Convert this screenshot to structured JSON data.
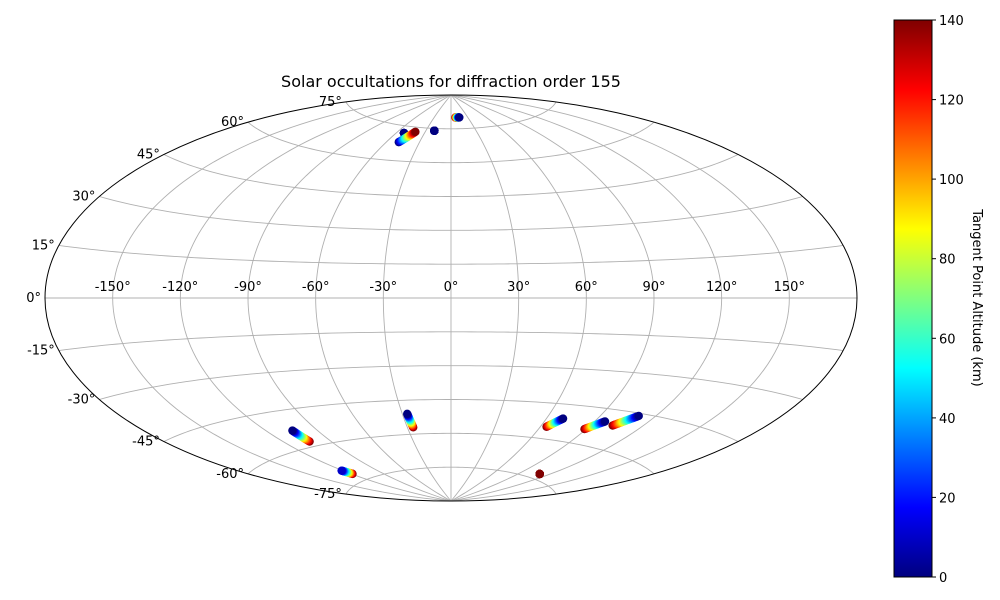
{
  "chart_data": {
    "type": "scatter",
    "projection": "aitoff",
    "title": "Solar occultations for diffraction order 155",
    "x_ticks": [
      -150,
      -120,
      -90,
      -60,
      -30,
      0,
      30,
      60,
      90,
      120,
      150
    ],
    "x_tick_labels": [
      "-150°",
      "-120°",
      "-90°",
      "-60°",
      "-30°",
      "0°",
      "30°",
      "60°",
      "90°",
      "120°",
      "150°"
    ],
    "y_ticks": [
      -75,
      -60,
      -45,
      -30,
      -15,
      0,
      15,
      30,
      45,
      60,
      75
    ],
    "y_tick_labels": [
      "-75°",
      "-60°",
      "-45°",
      "-30°",
      "-15°",
      "0°",
      "15°",
      "30°",
      "45°",
      "60°",
      "75°"
    ],
    "grid": true,
    "colormap": "jet",
    "colorbar": {
      "label": "Tangent Point Altitude (km)",
      "range": [
        0,
        140
      ],
      "ticks": [
        0,
        20,
        40,
        60,
        80,
        100,
        120,
        140
      ],
      "tick_labels": [
        "0",
        "20",
        "40",
        "60",
        "80",
        "100",
        "120",
        "140"
      ]
    },
    "occultations": [
      {
        "start": [
          -52,
          72
        ],
        "end": [
          -52,
          72
        ],
        "alt_start": 0,
        "alt_end": 0
      },
      {
        "start": [
          -49,
          68
        ],
        "end": [
          -41,
          73
        ],
        "alt_start": 0,
        "alt_end": 140
      },
      {
        "start": [
          -20,
          74
        ],
        "end": [
          -20,
          74
        ],
        "alt_start": 0,
        "alt_end": 0
      },
      {
        "start": [
          8,
          80
        ],
        "end": [
          15,
          80
        ],
        "alt_start": 140,
        "alt_end": 0
      },
      {
        "start": [
          -104,
          -58
        ],
        "end": [
          -105,
          -53
        ],
        "alt_start": 140,
        "alt_end": 0
      },
      {
        "start": [
          -119,
          -72
        ],
        "end": [
          -121,
          -70
        ],
        "alt_start": 140,
        "alt_end": 10
      },
      {
        "start": [
          -26,
          -57
        ],
        "end": [
          -27,
          -51
        ],
        "alt_start": 140,
        "alt_end": 0
      },
      {
        "start": [
          64,
          -55
        ],
        "end": [
          70,
          -51
        ],
        "alt_start": 140,
        "alt_end": 0
      },
      {
        "start": [
          89,
          -54
        ],
        "end": [
          96,
          -50
        ],
        "alt_start": 140,
        "alt_end": 0
      },
      {
        "start": [
          103,
          -51
        ],
        "end": [
          111,
          -46
        ],
        "alt_start": 140,
        "alt_end": 0
      },
      {
        "start": [
          111,
          -73
        ],
        "end": [
          111,
          -73
        ],
        "alt_start": 140,
        "alt_end": 140
      }
    ]
  }
}
